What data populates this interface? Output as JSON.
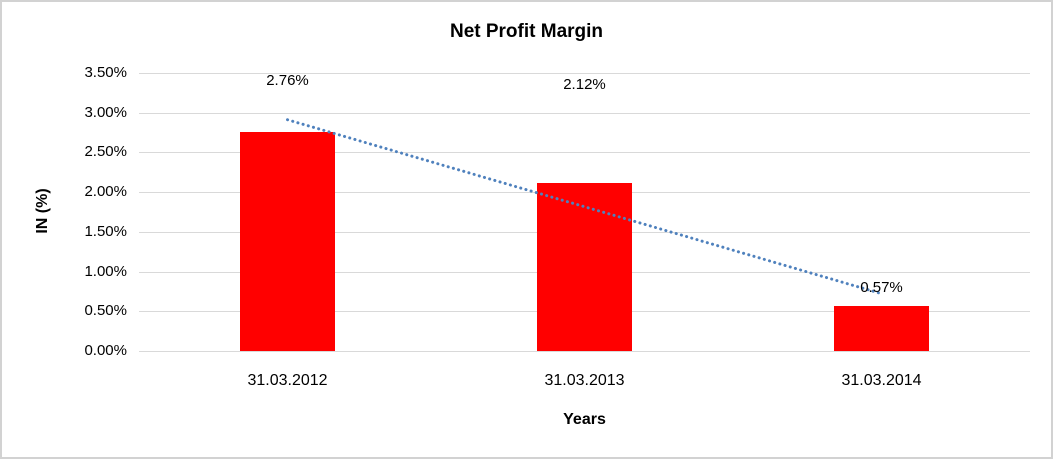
{
  "chart_data": {
    "type": "bar",
    "title": "Net Profit Margin",
    "xlabel": "Years",
    "ylabel": "IN (%)",
    "categories": [
      "31.03.2012",
      "31.03.2013",
      "31.03.2014"
    ],
    "values": [
      2.76,
      2.12,
      0.57
    ],
    "data_labels": [
      "2.76%",
      "2.12%",
      "0.57%"
    ],
    "ylim": [
      0,
      3.5
    ],
    "ytick_step": 0.5,
    "ytick_labels": [
      "3.50%",
      "3.00%",
      "2.50%",
      "2.00%",
      "1.50%",
      "1.00%",
      "0.50%",
      "0.00%"
    ],
    "grid": true,
    "legend": "none",
    "bar_color": "#ff0000",
    "trendline": {
      "type": "linear",
      "style": "dotted",
      "color": "#4f81bd",
      "values_at_categories": [
        2.91,
        1.82,
        0.72
      ]
    }
  }
}
